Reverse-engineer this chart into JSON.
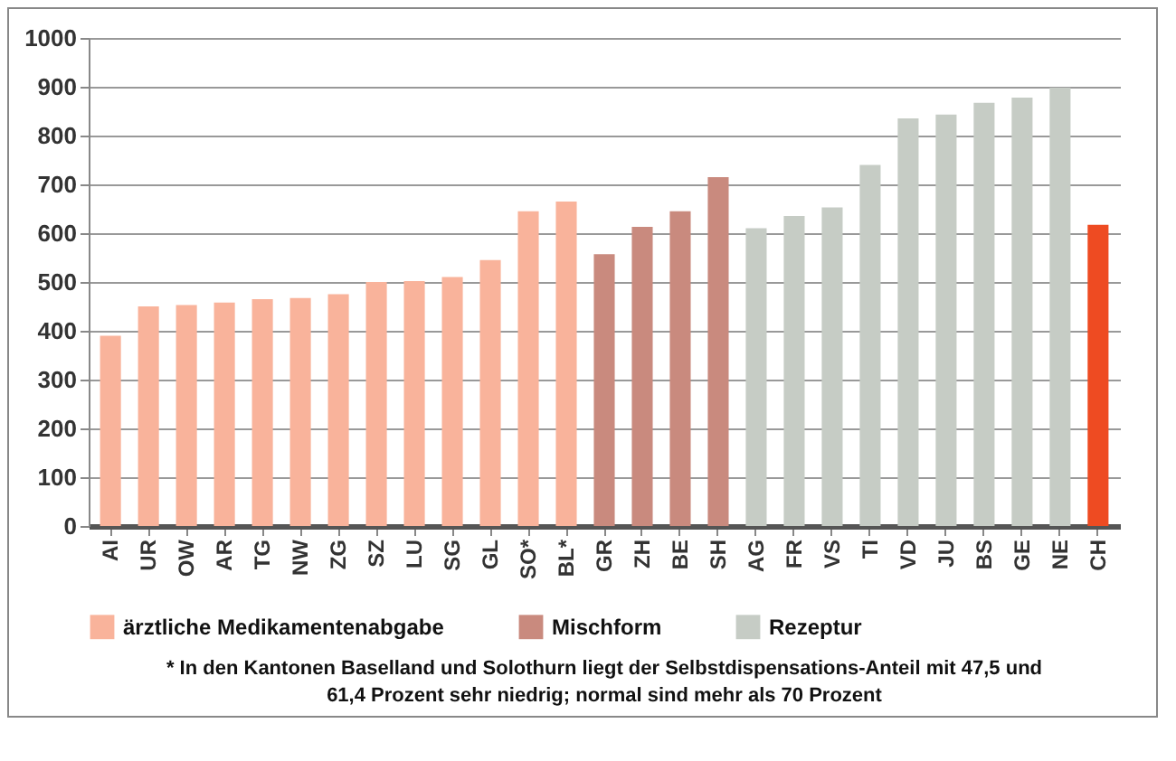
{
  "chart_data": {
    "type": "bar",
    "categories": [
      "AI",
      "UR",
      "OW",
      "AR",
      "TG",
      "NW",
      "ZG",
      "SZ",
      "LU",
      "SG",
      "GL",
      "SO*",
      "BL*",
      "GR",
      "ZH",
      "BE",
      "SH",
      "AG",
      "FR",
      "VS",
      "TI",
      "VD",
      "JU",
      "BS",
      "GE",
      "NE",
      "CH"
    ],
    "series": [
      {
        "name": "ärztliche Medikamentenabgabe",
        "color": "#f9b39b",
        "values": [
          390,
          450,
          453,
          458,
          465,
          467,
          475,
          500,
          502,
          510,
          545,
          645,
          665,
          null,
          null,
          null,
          null,
          null,
          null,
          null,
          null,
          null,
          null,
          null,
          null,
          null,
          null
        ]
      },
      {
        "name": "Mischform",
        "color": "#c98a7e",
        "values": [
          null,
          null,
          null,
          null,
          null,
          null,
          null,
          null,
          null,
          null,
          null,
          null,
          null,
          557,
          613,
          645,
          715,
          null,
          null,
          null,
          null,
          null,
          null,
          null,
          null,
          null,
          null
        ]
      },
      {
        "name": "Rezeptur",
        "color": "#c6ccc5",
        "values": [
          null,
          null,
          null,
          null,
          null,
          null,
          null,
          null,
          null,
          null,
          null,
          null,
          null,
          null,
          null,
          null,
          null,
          610,
          635,
          653,
          740,
          835,
          843,
          867,
          878,
          898,
          null
        ]
      },
      {
        "color": "#ee4b22",
        "values": [
          null,
          null,
          null,
          null,
          null,
          null,
          null,
          null,
          null,
          null,
          null,
          null,
          null,
          null,
          null,
          null,
          null,
          null,
          null,
          null,
          null,
          null,
          null,
          null,
          null,
          null,
          617
        ]
      }
    ],
    "ylim": [
      0,
      1000
    ],
    "yticks": [
      0,
      100,
      200,
      300,
      400,
      500,
      600,
      700,
      800,
      900,
      1000
    ],
    "grid": "y",
    "legend": "bottom",
    "annotations": [
      "* In den Kantonen Baselland und Solothurn liegt der Selbstdispensations-Anteil mit 47,5 und 61,4 Prozent sehr niedrig; normal sind mehr als 70 Prozent"
    ]
  }
}
